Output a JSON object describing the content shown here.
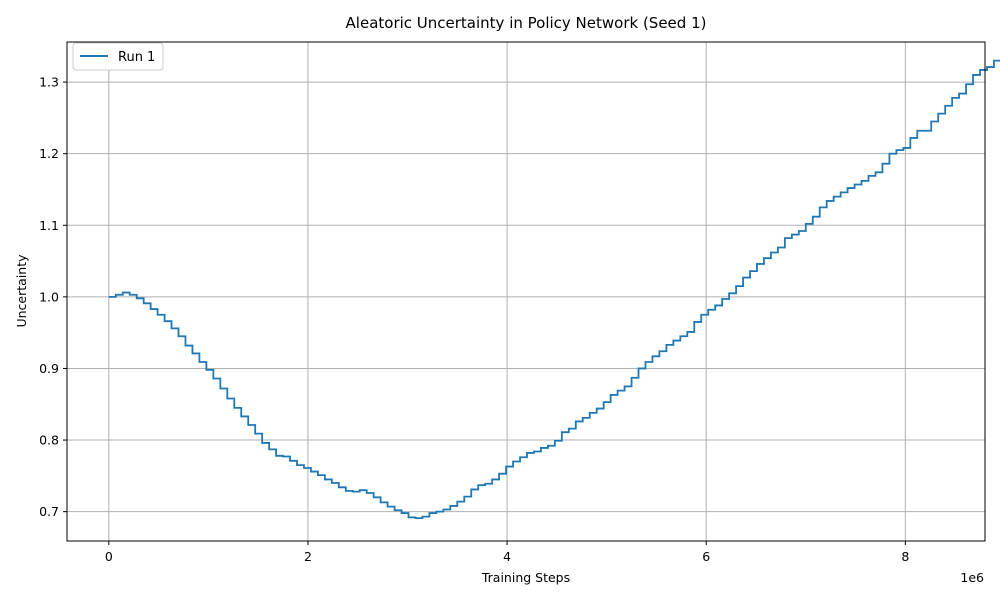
{
  "chart_data": {
    "type": "line",
    "title": "Aleatoric Uncertainty in Policy Network (Seed 1)",
    "xlabel": "Training Steps",
    "ylabel": "Uncertainty",
    "x_offset_label": "1e6",
    "xlim": [
      -420000,
      8800000
    ],
    "ylim": [
      0.659,
      1.356
    ],
    "x_ticks": [
      0,
      2000000,
      4000000,
      6000000,
      8000000
    ],
    "x_tick_labels": [
      "0",
      "2",
      "4",
      "6",
      "8"
    ],
    "y_ticks": [
      0.7,
      0.8,
      0.9,
      1.0,
      1.1,
      1.2,
      1.3
    ],
    "y_tick_labels": [
      "0.7",
      "0.8",
      "0.9",
      "1.0",
      "1.1",
      "1.2",
      "1.3"
    ],
    "grid": true,
    "legend_position": "upper-left",
    "series": [
      {
        "name": "Run 1",
        "color": "#1f77b4",
        "step": 70000,
        "values": [
          1.0,
          1.003,
          1.006,
          1.003,
          0.998,
          0.991,
          0.983,
          0.975,
          0.966,
          0.956,
          0.945,
          0.932,
          0.921,
          0.909,
          0.898,
          0.886,
          0.872,
          0.858,
          0.845,
          0.833,
          0.821,
          0.809,
          0.796,
          0.787,
          0.778,
          0.777,
          0.771,
          0.765,
          0.761,
          0.756,
          0.751,
          0.745,
          0.74,
          0.734,
          0.729,
          0.728,
          0.73,
          0.726,
          0.72,
          0.713,
          0.707,
          0.702,
          0.698,
          0.692,
          0.691,
          0.693,
          0.698,
          0.7,
          0.703,
          0.708,
          0.714,
          0.721,
          0.731,
          0.737,
          0.739,
          0.745,
          0.753,
          0.763,
          0.77,
          0.776,
          0.782,
          0.784,
          0.789,
          0.792,
          0.799,
          0.811,
          0.816,
          0.826,
          0.831,
          0.838,
          0.844,
          0.853,
          0.863,
          0.869,
          0.875,
          0.887,
          0.9,
          0.909,
          0.917,
          0.924,
          0.933,
          0.939,
          0.945,
          0.951,
          0.965,
          0.975,
          0.982,
          0.988,
          0.997,
          1.005,
          1.015,
          1.027,
          1.036,
          1.046,
          1.054,
          1.062,
          1.069,
          1.082,
          1.087,
          1.092,
          1.102,
          1.112,
          1.125,
          1.134,
          1.14,
          1.146,
          1.152,
          1.157,
          1.162,
          1.169,
          1.174,
          1.186,
          1.2,
          1.205,
          1.208,
          1.222,
          1.232,
          1.232,
          1.245,
          1.256,
          1.267,
          1.278,
          1.284,
          1.297,
          1.31,
          1.317,
          1.321,
          1.33,
          1.33
        ]
      }
    ]
  }
}
